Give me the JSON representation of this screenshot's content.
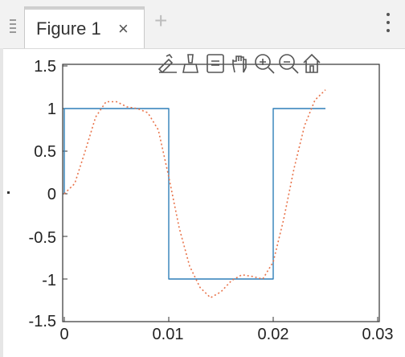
{
  "tab": {
    "label": "Figure 1",
    "close_symbol": "×",
    "add_symbol": "+"
  },
  "toolbar": {
    "icons": [
      "edit-plot-icon",
      "brush-icon",
      "data-tip-icon",
      "pan-hand-icon",
      "zoom-in-icon",
      "zoom-out-icon",
      "home-restore-icon"
    ]
  },
  "colors": {
    "square_wave": "#2f7fb8",
    "fourier_approx": "#e8734a",
    "axes": "#333333"
  },
  "chart_data": {
    "type": "line",
    "xlim": [
      0,
      0.03
    ],
    "ylim": [
      -1.5,
      1.5
    ],
    "xticks": [
      "0",
      "0.01",
      "0.02",
      "0.03"
    ],
    "yticks": [
      "1.5",
      "1",
      "0.5",
      "0",
      "-0.5",
      "-1",
      "-1.5"
    ],
    "grid": false,
    "series": [
      {
        "style": "solid",
        "x": [
          0,
          0,
          0.01,
          0.01,
          0.02,
          0.02,
          0.025
        ],
        "y": [
          0,
          1,
          1,
          -1,
          -1,
          1,
          1
        ]
      },
      {
        "style": "dotted",
        "x": [
          0,
          0.001,
          0.002,
          0.003,
          0.004,
          0.005,
          0.006,
          0.007,
          0.008,
          0.009,
          0.01,
          0.011,
          0.012,
          0.013,
          0.014,
          0.015,
          0.016,
          0.017,
          0.018,
          0.019,
          0.02,
          0.021,
          0.022,
          0.023,
          0.024,
          0.025
        ],
        "y": [
          0.0,
          0.12,
          0.5,
          0.9,
          1.08,
          1.08,
          1.02,
          1.0,
          0.95,
          0.75,
          0.2,
          -0.4,
          -0.85,
          -1.1,
          -1.22,
          -1.15,
          -1.02,
          -0.95,
          -0.97,
          -1.0,
          -0.8,
          -0.3,
          0.3,
          0.8,
          1.1,
          1.22
        ]
      }
    ]
  }
}
